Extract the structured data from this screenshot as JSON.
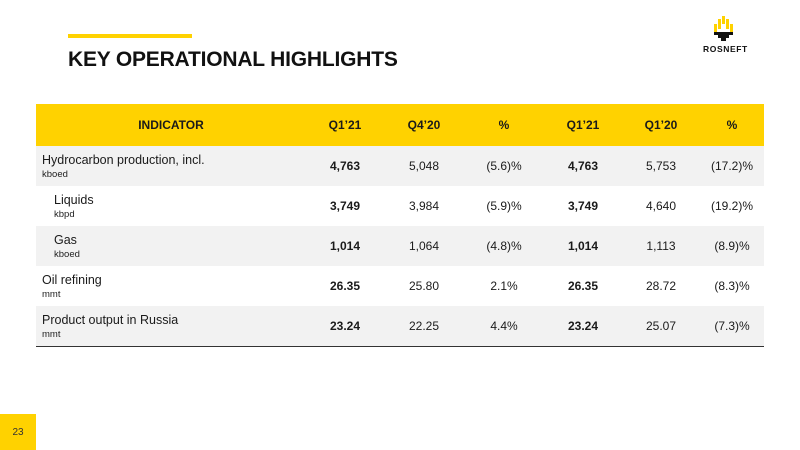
{
  "title": "KEY OPERATIONAL HIGHLIGHTS",
  "logo_text": "ROSNEFT",
  "page_number": "23",
  "colors": {
    "accent": "#FFD200",
    "shade": "#f2f2f2"
  },
  "table": {
    "headers": [
      "INDICATOR",
      "Q1’21",
      "Q4’20",
      "%",
      "Q1’21",
      "Q1’20",
      "%"
    ],
    "rows": [
      {
        "label": "Hydrocarbon production, incl.",
        "unit": "kboed",
        "values": [
          "4,763",
          "5,048",
          "(5.6)%",
          "4,763",
          "5,753",
          "(17.2)%"
        ]
      },
      {
        "label": "Liquids",
        "unit": "kbpd",
        "values": [
          "3,749",
          "3,984",
          "(5.9)%",
          "3,749",
          "4,640",
          "(19.2)%"
        ]
      },
      {
        "label": "Gas",
        "unit": "kboed",
        "values": [
          "1,014",
          "1,064",
          "(4.8)%",
          "1,014",
          "1,113",
          "(8.9)%"
        ]
      },
      {
        "label": "Oil refining",
        "unit": "mmt",
        "values": [
          "26.35",
          "25.80",
          "2.1%",
          "26.35",
          "28.72",
          "(8.3)%"
        ]
      },
      {
        "label": "Product output in Russia",
        "unit": "mmt",
        "values": [
          "23.24",
          "22.25",
          "4.4%",
          "23.24",
          "25.07",
          "(7.3)%"
        ]
      }
    ]
  }
}
